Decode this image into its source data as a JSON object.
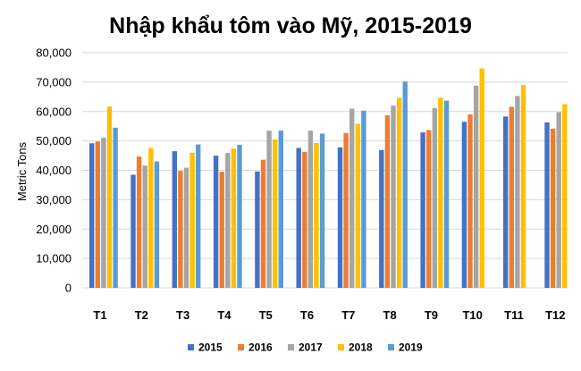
{
  "chart_data": {
    "type": "bar",
    "title": "Nhập khẩu tôm vào Mỹ, 2015-2019",
    "ylabel": "Metric Tons",
    "xlabel": "",
    "ylim": [
      0,
      80000
    ],
    "y_ticks": [
      "0",
      "10,000",
      "20,000",
      "30,000",
      "40,000",
      "50,000",
      "60,000",
      "70,000",
      "80,000"
    ],
    "grid": true,
    "legend_position": "bottom",
    "categories": [
      "T1",
      "T2",
      "T3",
      "T4",
      "T5",
      "T6",
      "T7",
      "T8",
      "T9",
      "T10",
      "T11",
      "T12"
    ],
    "series": [
      {
        "name": "2015",
        "color": "#4472c4",
        "values": [
          49200,
          38500,
          46500,
          45000,
          39600,
          47600,
          47800,
          46900,
          52900,
          56500,
          58300,
          56300
        ]
      },
      {
        "name": "2016",
        "color": "#ed7d31",
        "values": [
          49800,
          44700,
          39800,
          39500,
          43600,
          46300,
          52700,
          58700,
          53700,
          59000,
          61600,
          54200
        ]
      },
      {
        "name": "2017",
        "color": "#a5a5a5",
        "values": [
          51100,
          41600,
          40900,
          45900,
          53500,
          53500,
          61000,
          62000,
          61200,
          68800,
          65300,
          59800
        ]
      },
      {
        "name": "2018",
        "color": "#ffc000",
        "values": [
          61700,
          47600,
          46000,
          47400,
          50500,
          49300,
          55800,
          64700,
          64700,
          74700,
          69000,
          62500
        ]
      },
      {
        "name": "2019",
        "color": "#5b9bd5",
        "values": [
          54500,
          43000,
          48800,
          48700,
          53500,
          52500,
          60300,
          70200,
          63700,
          null,
          null,
          null
        ]
      }
    ]
  }
}
